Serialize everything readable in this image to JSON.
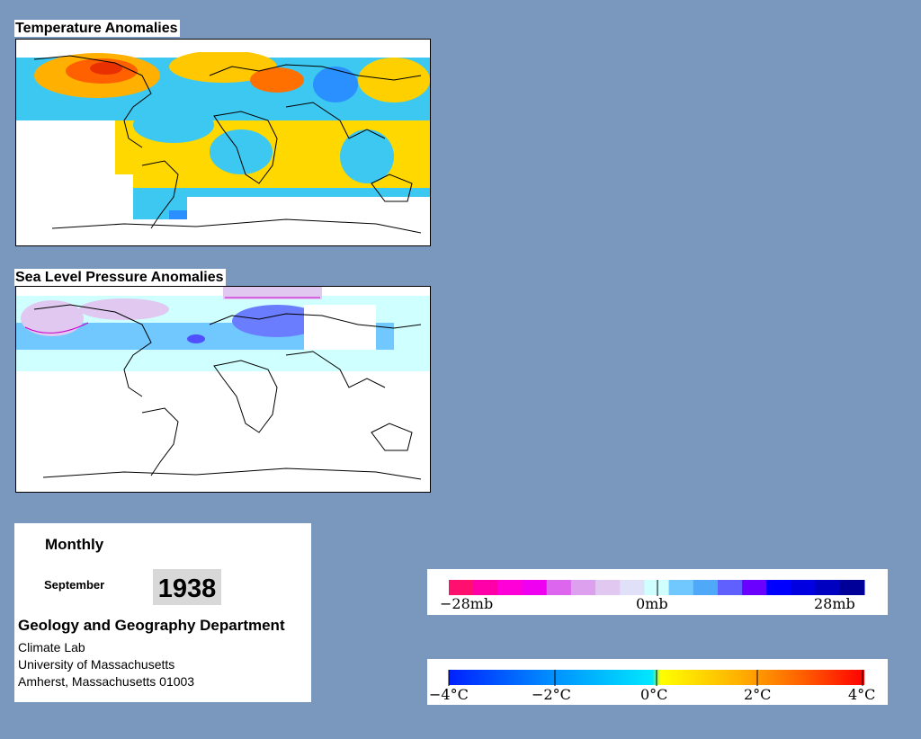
{
  "maps": [
    {
      "title": "Temperature Anomalies"
    },
    {
      "title": "Sea Level Pressure Anomalies"
    }
  ],
  "info": {
    "period": "Monthly",
    "month": "September",
    "year": "1938",
    "department": "Geology and Geography Department",
    "lab": "Climate Lab",
    "university": "University of Massachusetts",
    "city": "Amherst, Massachusetts 01003"
  },
  "pressure_legend": {
    "unit": "mb",
    "labels": [
      "−28mb",
      "0mb",
      "28mb"
    ],
    "colors": [
      "#ff0f6e",
      "#ff00a8",
      "#ff00d8",
      "#f000f0",
      "#dd66ee",
      "#dda0ee",
      "#e0c8f0",
      "#e0e0f8",
      "#d0ffff",
      "#70c8ff",
      "#50a8f8",
      "#6060ff",
      "#6a00ff",
      "#0000ff",
      "#0000e0",
      "#0000c0",
      "#000098"
    ]
  },
  "temperature_legend": {
    "unit": "°C",
    "labels": [
      "−4°C",
      "−2°C",
      "0°C",
      "2°C",
      "4°C"
    ],
    "gradient_stops": [
      "#0020ff",
      "#0090ff",
      "#00e8ff",
      "#ffff00",
      "#ffb000",
      "#ff6000",
      "#ff0000"
    ]
  }
}
